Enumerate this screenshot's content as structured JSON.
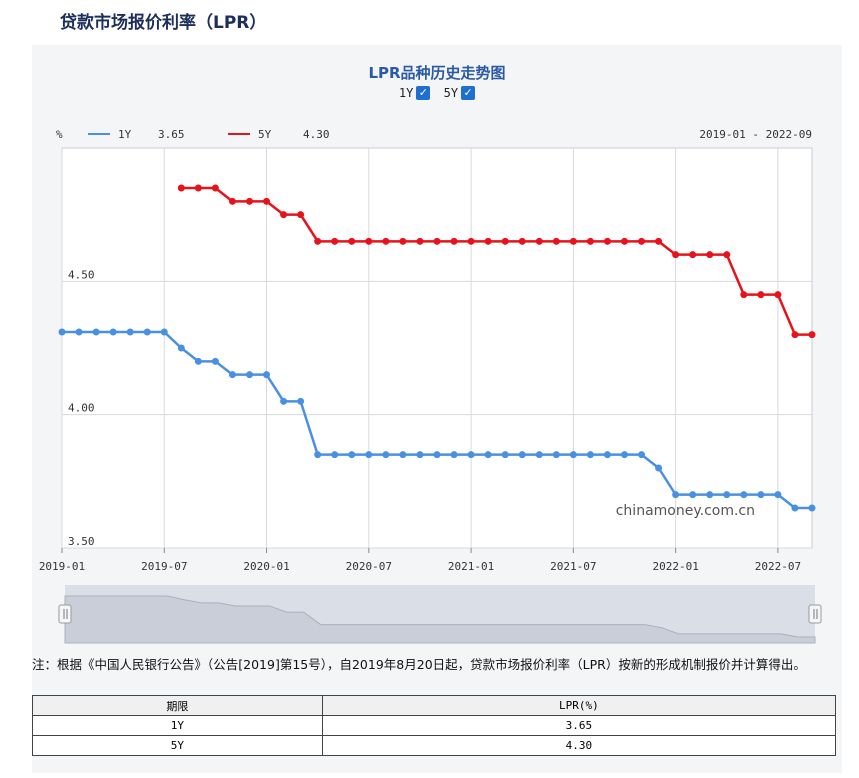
{
  "page": {
    "title": "贷款市场报价利率（LPR）",
    "chart_title": "LPR品种历史走势图",
    "toggle_1y": "1Y",
    "toggle_5y": "5Y",
    "checkmark": "✓",
    "watermark": "chinamoney.com.cn",
    "note": "注：根据《中国人民银行公告》（公告[2019]第15号），自2019年8月20日起，贷款市场报价利率（LPR）按新的形成机制报价并计算得出。"
  },
  "colors": {
    "1Y": "#4a90e2",
    "5Y": "#e8121b",
    "grid": "#d6d9de",
    "slider_bg": "#d9dee7"
  },
  "table": {
    "headers": [
      "期限",
      "LPR(%)"
    ],
    "rows": [
      [
        "1Y",
        "3.65"
      ],
      [
        "5Y",
        "4.30"
      ]
    ]
  },
  "chart_data": {
    "type": "line",
    "title": "LPR品种历史走势图",
    "ylabel": "%",
    "date_range": "2019-01 - 2022-09",
    "ylim": [
      3.5,
      5.0
    ],
    "yticks": [
      "3.50",
      "4.00",
      "4.50"
    ],
    "x_tick_labels": [
      "2019-01",
      "2019-07",
      "2020-01",
      "2020-07",
      "2021-01",
      "2021-07",
      "2022-01",
      "2022-07"
    ],
    "x": [
      "2019-01",
      "2019-02",
      "2019-03",
      "2019-04",
      "2019-05",
      "2019-06",
      "2019-07",
      "2019-08",
      "2019-09",
      "2019-10",
      "2019-11",
      "2019-12",
      "2020-01",
      "2020-02",
      "2020-03",
      "2020-04",
      "2020-05",
      "2020-06",
      "2020-07",
      "2020-08",
      "2020-09",
      "2020-10",
      "2020-11",
      "2020-12",
      "2021-01",
      "2021-02",
      "2021-03",
      "2021-04",
      "2021-05",
      "2021-06",
      "2021-07",
      "2021-08",
      "2021-09",
      "2021-10",
      "2021-11",
      "2021-12",
      "2022-01",
      "2022-02",
      "2022-03",
      "2022-04",
      "2022-05",
      "2022-06",
      "2022-07",
      "2022-08",
      "2022-09"
    ],
    "series": [
      {
        "name": "1Y",
        "latest": "3.65",
        "values": [
          4.31,
          4.31,
          4.31,
          4.31,
          4.31,
          4.31,
          4.31,
          4.25,
          4.2,
          4.2,
          4.15,
          4.15,
          4.15,
          4.05,
          4.05,
          3.85,
          3.85,
          3.85,
          3.85,
          3.85,
          3.85,
          3.85,
          3.85,
          3.85,
          3.85,
          3.85,
          3.85,
          3.85,
          3.85,
          3.85,
          3.85,
          3.85,
          3.85,
          3.85,
          3.85,
          3.8,
          3.7,
          3.7,
          3.7,
          3.7,
          3.7,
          3.7,
          3.7,
          3.65,
          3.65
        ]
      },
      {
        "name": "5Y",
        "latest": "4.30",
        "values": [
          null,
          null,
          null,
          null,
          null,
          null,
          null,
          4.85,
          4.85,
          4.85,
          4.8,
          4.8,
          4.8,
          4.75,
          4.75,
          4.65,
          4.65,
          4.65,
          4.65,
          4.65,
          4.65,
          4.65,
          4.65,
          4.65,
          4.65,
          4.65,
          4.65,
          4.65,
          4.65,
          4.65,
          4.65,
          4.65,
          4.65,
          4.65,
          4.65,
          4.65,
          4.6,
          4.6,
          4.6,
          4.6,
          4.45,
          4.45,
          4.45,
          4.3,
          4.3
        ]
      }
    ]
  }
}
